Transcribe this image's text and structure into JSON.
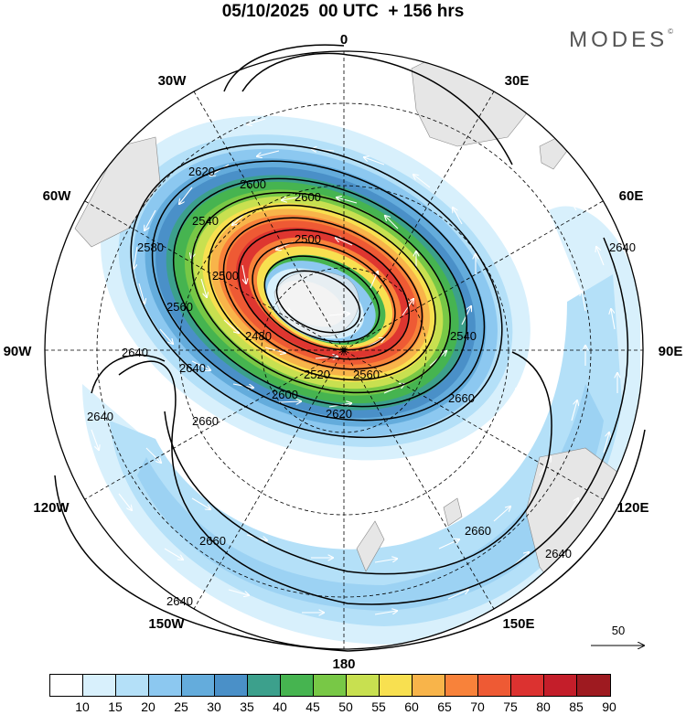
{
  "header": {
    "title": "05/10/2025  00 UTC  + 156 hrs",
    "brand": "MODES",
    "brand_mark": "©"
  },
  "map": {
    "projection": "south polar stereographic",
    "longitude_labels": [
      "0",
      "30E",
      "60E",
      "90E",
      "120E",
      "150E",
      "180",
      "150W",
      "120W",
      "90W",
      "60W",
      "30W"
    ],
    "contour_labels": [
      "2620",
      "2600",
      "2600",
      "2580",
      "2540",
      "2500",
      "2500",
      "2480",
      "2560",
      "2460",
      "2520",
      "2560",
      "2540",
      "2600",
      "2620",
      "2640",
      "2640",
      "2660",
      "2660",
      "2640",
      "2640",
      "2620",
      "2660",
      "2660",
      "2640",
      "2640"
    ],
    "wind_reference_vector": "50",
    "colors": {
      "contour": "#000000",
      "vectors": "#ffffff",
      "land": "#e6e6e6"
    }
  },
  "colorbar": {
    "ticks": [
      "10",
      "15",
      "20",
      "25",
      "30",
      "35",
      "40",
      "45",
      "50",
      "55",
      "60",
      "65",
      "70",
      "75",
      "80",
      "85",
      "90"
    ],
    "colors": [
      "#ffffff",
      "#d8f0fc",
      "#b4e0f8",
      "#8cc8f0",
      "#64acdc",
      "#4a90c8",
      "#3ca08c",
      "#46b450",
      "#78c846",
      "#c8e050",
      "#f8e050",
      "#f8b44a",
      "#f8823a",
      "#ee5a34",
      "#dc3230",
      "#c41e2a",
      "#9e1a20"
    ]
  }
}
